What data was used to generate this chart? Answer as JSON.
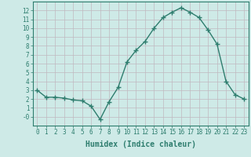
{
  "x": [
    0,
    1,
    2,
    3,
    4,
    5,
    6,
    7,
    8,
    9,
    10,
    11,
    12,
    13,
    14,
    15,
    16,
    17,
    18,
    19,
    20,
    21,
    22,
    23
  ],
  "y": [
    3.0,
    2.2,
    2.2,
    2.1,
    1.9,
    1.8,
    1.2,
    -0.3,
    1.7,
    3.3,
    6.2,
    7.5,
    8.5,
    10.0,
    11.2,
    11.8,
    12.3,
    11.8,
    11.2,
    9.8,
    8.2,
    4.0,
    2.5,
    2.0
  ],
  "line_color": "#2e7d6e",
  "marker": "+",
  "markersize": 4,
  "linewidth": 1.0,
  "bg_color": "#ceeae7",
  "grid_color": "#c0b8c0",
  "xlabel": "Humidex (Indice chaleur)",
  "xlim": [
    -0.5,
    23.5
  ],
  "ylim": [
    -1,
    13
  ],
  "yticks": [
    0,
    1,
    2,
    3,
    4,
    5,
    6,
    7,
    8,
    9,
    10,
    11,
    12
  ],
  "ytick_labels": [
    "-0",
    "1",
    "2",
    "3",
    "4",
    "5",
    "6",
    "7",
    "8",
    "9",
    "10",
    "11",
    "12"
  ],
  "xticks": [
    0,
    1,
    2,
    3,
    4,
    5,
    6,
    7,
    8,
    9,
    10,
    11,
    12,
    13,
    14,
    15,
    16,
    17,
    18,
    19,
    20,
    21,
    22,
    23
  ],
  "tick_fontsize": 5.5,
  "label_fontsize": 7.0,
  "font_family": "monospace"
}
